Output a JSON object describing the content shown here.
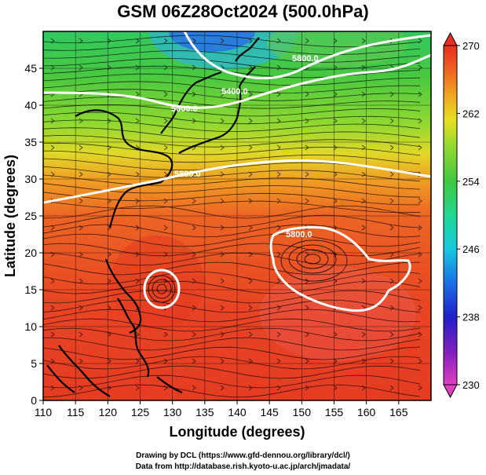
{
  "title": "GSM 06Z28Oct2024 (500.0hPa)",
  "axes": {
    "xlabel": "Longitude (degrees)",
    "ylabel": "Latitude (degrees)",
    "xlim": [
      110,
      170
    ],
    "ylim": [
      0,
      50
    ],
    "xticks": [
      "110",
      "115",
      "120",
      "125",
      "130",
      "135",
      "140",
      "145",
      "150",
      "155",
      "160",
      "165"
    ],
    "yticks": [
      "0",
      "5",
      "10",
      "15",
      "20",
      "25",
      "30",
      "35",
      "40",
      "45"
    ]
  },
  "colorbar": {
    "ticks": [
      "230",
      "238",
      "246",
      "254",
      "262",
      "270"
    ],
    "min": 230,
    "max": 270,
    "colors": [
      "#e040c0",
      "#7a1fc0",
      "#2020c8",
      "#1a70e8",
      "#18c8e0",
      "#20d890",
      "#40c840",
      "#90d830",
      "#e8e020",
      "#f0a020",
      "#f06020",
      "#e83020"
    ]
  },
  "contours": {
    "labels": [
      "5400.0",
      "5600.0",
      "5800.0",
      "5800.0",
      "5800.0"
    ]
  },
  "credits": {
    "line1": "Drawing by DCL (https://www.gfd-dennou.org/library/dcl/)",
    "line2": "Data from http://database.rish.kyoto-u.ac.jp/arch/jmadata/"
  }
}
